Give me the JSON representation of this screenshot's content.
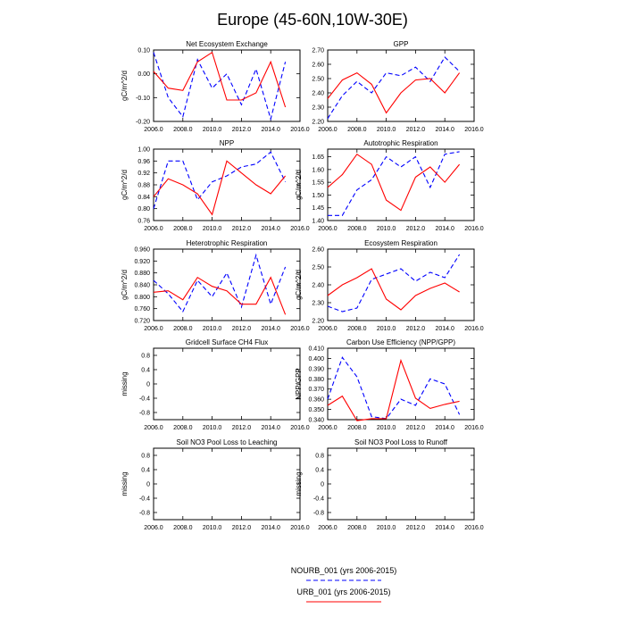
{
  "page": {
    "title": "Europe (45-60N,10W-30E)"
  },
  "legend": [
    {
      "label": "NOURB_001 (yrs 2006-2015)",
      "color": "#0000ff",
      "dash": "dashed"
    },
    {
      "label": "URB_001 (yrs 2006-2015)",
      "color": "#ff0000",
      "dash": "solid"
    }
  ],
  "x_axis": {
    "ticks": [
      2006,
      2008,
      2010,
      2012,
      2014,
      2016
    ],
    "tick_labels": [
      "2006.0",
      "2008.0",
      "2010.0",
      "2012.0",
      "2014.0",
      "2016.0"
    ],
    "xlim": [
      2006,
      2016
    ]
  },
  "chart_data": [
    {
      "type": "line",
      "title": "Net Ecosystem Exchange",
      "ylabel": "gC/m^2/d",
      "ylim": [
        -0.2,
        0.1
      ],
      "yticks": [
        -0.2,
        -0.1,
        0,
        0.1
      ],
      "ytick_labels": [
        "-0.20",
        "-0.10",
        "0.00",
        "0.10"
      ],
      "x": [
        2006,
        2007,
        2008,
        2009,
        2010,
        2011,
        2012,
        2013,
        2014,
        2015
      ],
      "series": [
        {
          "name": "NOURB_001 (yrs 2006-2015)",
          "color": "#0000ff",
          "dash": "dashed",
          "values": [
            0.09,
            -0.1,
            -0.18,
            0.06,
            -0.06,
            0.0,
            -0.13,
            0.02,
            -0.19,
            0.05
          ]
        },
        {
          "name": "URB_001 (yrs 2006-2015)",
          "color": "#ff0000",
          "dash": "solid",
          "values": [
            0.01,
            -0.06,
            -0.07,
            0.05,
            0.09,
            -0.11,
            -0.11,
            -0.08,
            0.05,
            -0.14
          ]
        }
      ]
    },
    {
      "type": "line",
      "title": "GPP",
      "ylabel": "",
      "ylim": [
        2.2,
        2.7
      ],
      "yticks": [
        2.2,
        2.3,
        2.4,
        2.5,
        2.6,
        2.7
      ],
      "ytick_labels": [
        "2.20",
        "2.30",
        "2.40",
        "2.50",
        "2.60",
        "2.70"
      ],
      "x": [
        2006,
        2007,
        2008,
        2009,
        2010,
        2011,
        2012,
        2013,
        2014,
        2015
      ],
      "series": [
        {
          "name": "NOURB_001 (yrs 2006-2015)",
          "color": "#0000ff",
          "dash": "dashed",
          "values": [
            2.22,
            2.38,
            2.48,
            2.4,
            2.54,
            2.52,
            2.58,
            2.48,
            2.65,
            2.55
          ]
        },
        {
          "name": "URB_001 (yrs 2006-2015)",
          "color": "#ff0000",
          "dash": "solid",
          "values": [
            2.36,
            2.49,
            2.54,
            2.46,
            2.26,
            2.4,
            2.49,
            2.5,
            2.4,
            2.54
          ]
        }
      ]
    },
    {
      "type": "line",
      "title": "NPP",
      "ylabel": "gC/m^2/d",
      "ylim": [
        0.76,
        1.0
      ],
      "yticks": [
        0.76,
        0.8,
        0.84,
        0.88,
        0.92,
        0.96,
        1.0
      ],
      "ytick_labels": [
        "0.76",
        "0.80",
        "0.84",
        "0.88",
        "0.92",
        "0.96",
        "1.00"
      ],
      "x": [
        2006,
        2007,
        2008,
        2009,
        2010,
        2011,
        2012,
        2013,
        2014,
        2015
      ],
      "series": [
        {
          "name": "NOURB_001 (yrs 2006-2015)",
          "color": "#0000ff",
          "dash": "dashed",
          "values": [
            0.8,
            0.96,
            0.96,
            0.83,
            0.89,
            0.91,
            0.94,
            0.95,
            0.99,
            0.89
          ]
        },
        {
          "name": "URB_001 (yrs 2006-2015)",
          "color": "#ff0000",
          "dash": "solid",
          "values": [
            0.84,
            0.9,
            0.88,
            0.85,
            0.78,
            0.96,
            0.92,
            0.88,
            0.85,
            0.91
          ]
        }
      ]
    },
    {
      "type": "line",
      "title": "Autotrophic Respiration",
      "ylabel": "gC/m^2/d",
      "ylim": [
        1.4,
        1.68
      ],
      "yticks": [
        1.4,
        1.45,
        1.5,
        1.55,
        1.6,
        1.65
      ],
      "ytick_labels": [
        "1.40",
        "1.45",
        "1.50",
        "1.55",
        "1.60",
        "1.65"
      ],
      "x": [
        2006,
        2007,
        2008,
        2009,
        2010,
        2011,
        2012,
        2013,
        2014,
        2015
      ],
      "series": [
        {
          "name": "NOURB_001 (yrs 2006-2015)",
          "color": "#0000ff",
          "dash": "dashed",
          "values": [
            1.42,
            1.42,
            1.52,
            1.56,
            1.65,
            1.61,
            1.65,
            1.53,
            1.66,
            1.67
          ]
        },
        {
          "name": "URB_001 (yrs 2006-2015)",
          "color": "#ff0000",
          "dash": "solid",
          "values": [
            1.53,
            1.58,
            1.66,
            1.62,
            1.48,
            1.44,
            1.57,
            1.61,
            1.55,
            1.62
          ]
        }
      ]
    },
    {
      "type": "line",
      "title": "Heterotrophic Respiration",
      "ylabel": "gC/m^2/d",
      "ylim": [
        0.72,
        0.96
      ],
      "yticks": [
        0.72,
        0.76,
        0.8,
        0.84,
        0.88,
        0.92,
        0.96
      ],
      "ytick_labels": [
        "0.720",
        "0.760",
        "0.800",
        "0.840",
        "0.880",
        "0.920",
        "0.960"
      ],
      "x": [
        2006,
        2007,
        2008,
        2009,
        2010,
        2011,
        2012,
        2013,
        2014,
        2015
      ],
      "series": [
        {
          "name": "NOURB_001 (yrs 2006-2015)",
          "color": "#0000ff",
          "dash": "dashed",
          "values": [
            0.855,
            0.81,
            0.75,
            0.855,
            0.8,
            0.88,
            0.765,
            0.94,
            0.775,
            0.9
          ]
        },
        {
          "name": "URB_001 (yrs 2006-2015)",
          "color": "#ff0000",
          "dash": "solid",
          "values": [
            0.815,
            0.82,
            0.79,
            0.865,
            0.835,
            0.82,
            0.775,
            0.775,
            0.865,
            0.74
          ]
        }
      ]
    },
    {
      "type": "line",
      "title": "Ecosystem Respiration",
      "ylabel": "gC/m^2/d",
      "ylim": [
        2.2,
        2.6
      ],
      "yticks": [
        2.2,
        2.3,
        2.4,
        2.5,
        2.6
      ],
      "ytick_labels": [
        "2.20",
        "2.30",
        "2.40",
        "2.50",
        "2.60"
      ],
      "x": [
        2006,
        2007,
        2008,
        2009,
        2010,
        2011,
        2012,
        2013,
        2014,
        2015
      ],
      "series": [
        {
          "name": "NOURB_001 (yrs 2006-2015)",
          "color": "#0000ff",
          "dash": "dashed",
          "values": [
            2.28,
            2.25,
            2.27,
            2.43,
            2.46,
            2.49,
            2.42,
            2.47,
            2.44,
            2.57
          ]
        },
        {
          "name": "URB_001 (yrs 2006-2015)",
          "color": "#ff0000",
          "dash": "solid",
          "values": [
            2.34,
            2.4,
            2.44,
            2.49,
            2.32,
            2.26,
            2.34,
            2.38,
            2.41,
            2.36
          ]
        }
      ]
    },
    {
      "type": "line",
      "title": "Gridcell Surface CH4 Flux",
      "ylabel": "missing",
      "ylim": [
        -1,
        1
      ],
      "yticks": [
        -0.8,
        -0.4,
        0,
        0.4,
        0.8
      ],
      "ytick_labels": [
        "-0.8",
        "-0.4",
        "0",
        "0.4",
        "0.8"
      ],
      "x": [],
      "series": []
    },
    {
      "type": "line",
      "title": "Carbon Use Efficiency (NPP/GPP)",
      "ylabel": "NPP/GPP",
      "ylim": [
        0.34,
        0.41
      ],
      "yticks": [
        0.34,
        0.35,
        0.36,
        0.37,
        0.38,
        0.39,
        0.4,
        0.41
      ],
      "ytick_labels": [
        "0.340",
        "0.350",
        "0.360",
        "0.370",
        "0.380",
        "0.390",
        "0.400",
        "0.410"
      ],
      "x": [
        2006,
        2007,
        2008,
        2009,
        2010,
        2011,
        2012,
        2013,
        2014,
        2015
      ],
      "series": [
        {
          "name": "NOURB_001 (yrs 2006-2015)",
          "color": "#0000ff",
          "dash": "dashed",
          "values": [
            0.36,
            0.401,
            0.382,
            0.343,
            0.341,
            0.36,
            0.354,
            0.38,
            0.375,
            0.345
          ]
        },
        {
          "name": "URB_001 (yrs 2006-2015)",
          "color": "#ff0000",
          "dash": "solid",
          "values": [
            0.354,
            0.363,
            0.339,
            0.341,
            0.341,
            0.398,
            0.361,
            0.351,
            0.355,
            0.358
          ]
        }
      ]
    },
    {
      "type": "line",
      "title": "Soil NO3 Pool Loss to Leaching",
      "ylabel": "missing",
      "ylim": [
        -1,
        1
      ],
      "yticks": [
        -0.8,
        -0.4,
        0,
        0.4,
        0.8
      ],
      "ytick_labels": [
        "-0.8",
        "-0.4",
        "0",
        "0.4",
        "0.8"
      ],
      "x": [],
      "series": []
    },
    {
      "type": "line",
      "title": "Soil NO3 Pool Loss to Runoff",
      "ylabel": "missing",
      "ylim": [
        -1,
        1
      ],
      "yticks": [
        -0.8,
        -0.4,
        0,
        0.4,
        0.8
      ],
      "ytick_labels": [
        "-0.8",
        "-0.4",
        "0",
        "0.4",
        "0.8"
      ],
      "x": [],
      "series": []
    }
  ]
}
